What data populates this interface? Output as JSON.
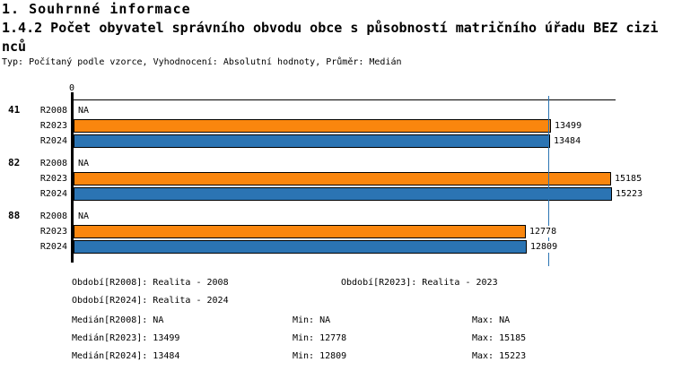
{
  "header": {
    "title": "1. Souhrnné informace",
    "subtitle_lines": [
      "1.4.2 Počet obyvatel správního obvodu obce s působností matričního úřadu BEZ cizi",
      "nců"
    ],
    "meta": "Typ: Počítaný podle vzorce, Vyhodnocení: Absolutní hodnoty, Průměr: Medián"
  },
  "colors": {
    "r2023_orange": "#FA860E",
    "r2024_blue": "#2B74B3",
    "axis_black": "#000000"
  },
  "chart_data": {
    "type": "bar",
    "orientation": "horizontal",
    "title": "1.4.2 Počet obyvatel správního obvodu obce s působností matričního úřadu BEZ cizinců",
    "axis": {
      "origin_tick_label": "0",
      "x_min": 0,
      "x_max_estimated": 15223
    },
    "na_label": "NA",
    "series": [
      "R2008",
      "R2023",
      "R2024"
    ],
    "groups": [
      {
        "label": "41",
        "values": {
          "R2008": null,
          "R2023": 13499,
          "R2024": 13484
        }
      },
      {
        "label": "82",
        "values": {
          "R2008": null,
          "R2023": 15185,
          "R2024": 15223
        }
      },
      {
        "label": "88",
        "values": {
          "R2008": null,
          "R2023": 12778,
          "R2024": 12809
        }
      }
    ],
    "median_lines": {
      "R2023": 13499,
      "R2024": 13484
    },
    "legend_position": "bottom",
    "grid": false
  },
  "legend": {
    "period_prefix": "Období",
    "median_prefix": "Medián",
    "min_label": "Min",
    "max_label": "Max",
    "periods": [
      {
        "key": "R2008",
        "reality": "Realita - 2008",
        "median": "NA",
        "min": "NA",
        "max": "NA"
      },
      {
        "key": "R2023",
        "reality": "Realita - 2023",
        "median": "13499",
        "min": "12778",
        "max": "15185"
      },
      {
        "key": "R2024",
        "reality": "Realita - 2024",
        "median": "13484",
        "min": "12809",
        "max": "15223"
      }
    ]
  }
}
